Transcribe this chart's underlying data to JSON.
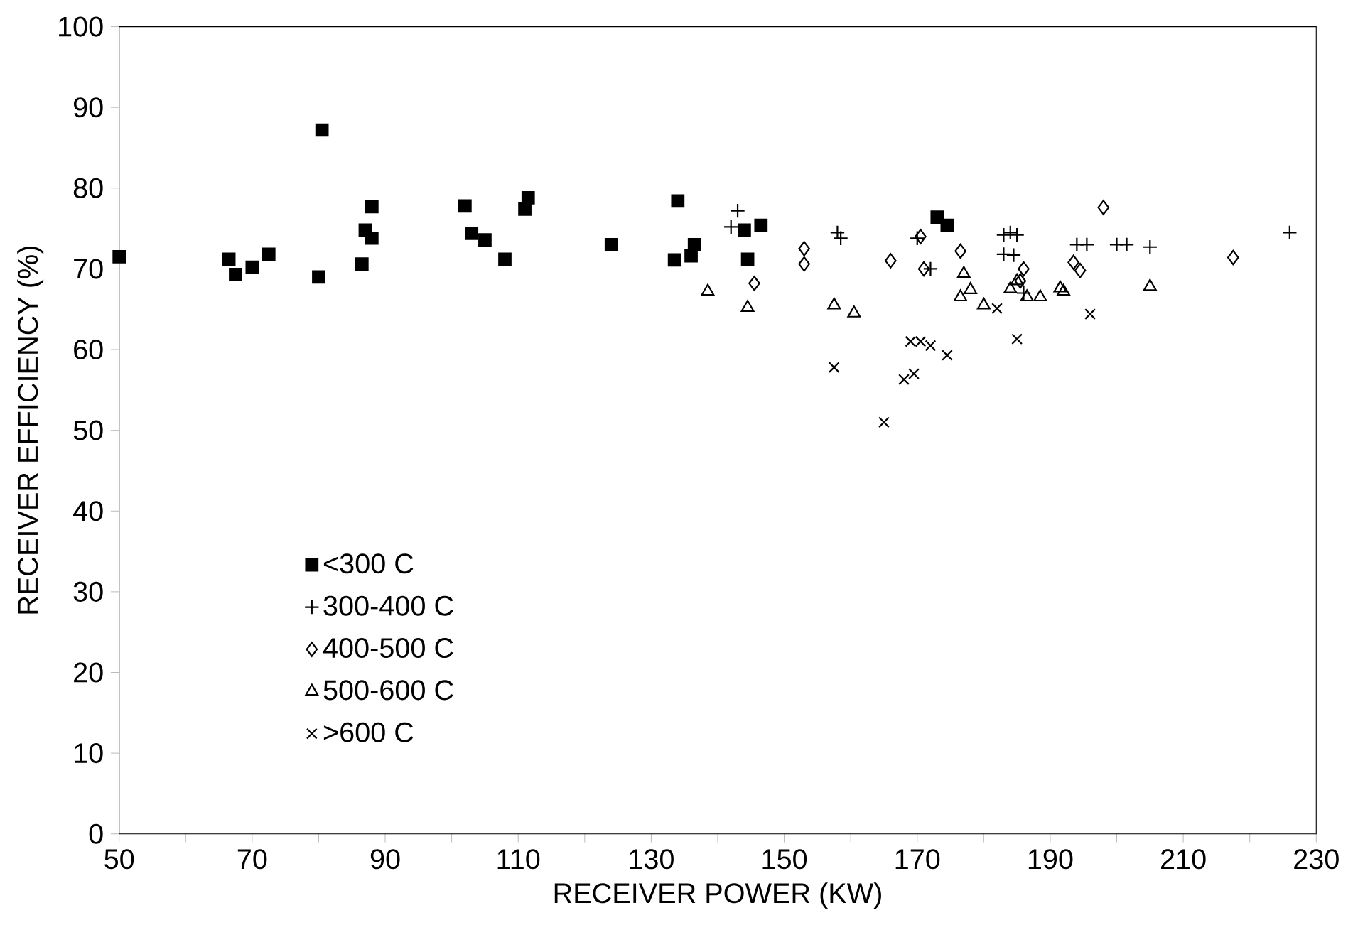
{
  "chart_data": {
    "type": "scatter",
    "xlabel": "RECEIVER POWER (KW)",
    "ylabel": "RECEIVER EFFICIENCY (%)",
    "xlim": [
      50,
      230
    ],
    "ylim": [
      0,
      100
    ],
    "xticks": [
      50,
      {
        "value": 60,
        "label": null
      },
      70,
      {
        "value": 80,
        "label": null
      },
      90,
      {
        "value": 100,
        "label": null
      },
      110,
      {
        "value": 120,
        "label": null
      },
      130,
      {
        "value": 140,
        "label": null
      },
      150,
      {
        "value": 160,
        "label": null
      },
      170,
      {
        "value": 180,
        "label": null
      },
      190,
      {
        "value": 200,
        "label": null
      },
      210,
      {
        "value": 220,
        "label": null
      },
      230
    ],
    "yticks": [
      0,
      10,
      20,
      30,
      40,
      50,
      60,
      70,
      80,
      90,
      100
    ],
    "legend": "bottom left",
    "grid": false,
    "series": [
      {
        "name": "<300 C",
        "color": "#000000",
        "marker": "square",
        "x": [
          50,
          66.5,
          67.5,
          70,
          72.5,
          80.5,
          80,
          86.5,
          87,
          88,
          88,
          102,
          103,
          105,
          108,
          111,
          111.5,
          124,
          133.5,
          134,
          136,
          136.5,
          144,
          144.5,
          146.5,
          173,
          174.5
        ],
        "values": [
          71.5,
          71.2,
          69.3,
          70.2,
          71.8,
          87.2,
          69,
          70.6,
          74.8,
          77.7,
          73.8,
          77.8,
          74.4,
          73.6,
          71.2,
          77.4,
          78.8,
          73,
          71.1,
          78.4,
          71.6,
          73,
          74.8,
          71.2,
          75.4,
          76.4,
          75.4
        ]
      },
      {
        "name": "300-400 C",
        "color": "#000000",
        "marker": "plus",
        "x": [
          143,
          142,
          158,
          158.5,
          170,
          172,
          183,
          184,
          185,
          183,
          184.5,
          186,
          194,
          195.5,
          200,
          201.5,
          205,
          226
        ],
        "values": [
          77.2,
          75.2,
          74.5,
          73.8,
          73.8,
          70,
          74.2,
          74.5,
          74.2,
          71.8,
          71.7,
          67,
          73,
          73,
          73,
          73,
          72.7,
          74.5
        ]
      },
      {
        "name": "400-500 C",
        "color": "#000000",
        "marker": "diamond",
        "x": [
          145.5,
          153,
          153,
          166,
          170.5,
          171,
          176.5,
          186,
          193.5,
          194.5,
          198,
          217.5,
          185.5
        ],
        "values": [
          68.2,
          72.5,
          70.6,
          71,
          74,
          70,
          72.2,
          70,
          70.8,
          69.8,
          77.6,
          71.4,
          68.5
        ]
      },
      {
        "name": "500-600 C",
        "color": "#000000",
        "marker": "triangle",
        "x": [
          138.5,
          144.5,
          157.5,
          160.5,
          177,
          178,
          176.5,
          180,
          184,
          185,
          186.5,
          188.5,
          191.5,
          192,
          205
        ],
        "values": [
          67.2,
          65.2,
          65.5,
          64.5,
          69.4,
          67.4,
          66.5,
          65.5,
          67.5,
          68.5,
          66.5,
          66.5,
          67.6,
          67.2,
          67.8
        ]
      },
      {
        "name": ">600 C",
        "color": "#000000",
        "marker": "cross",
        "x": [
          157.5,
          165,
          168,
          169.5,
          169,
          170.5,
          172,
          174.5,
          182,
          185,
          196
        ],
        "values": [
          57.8,
          51,
          56.3,
          57,
          61,
          61,
          60.5,
          59.3,
          65.1,
          61.3,
          64.4
        ]
      }
    ]
  }
}
